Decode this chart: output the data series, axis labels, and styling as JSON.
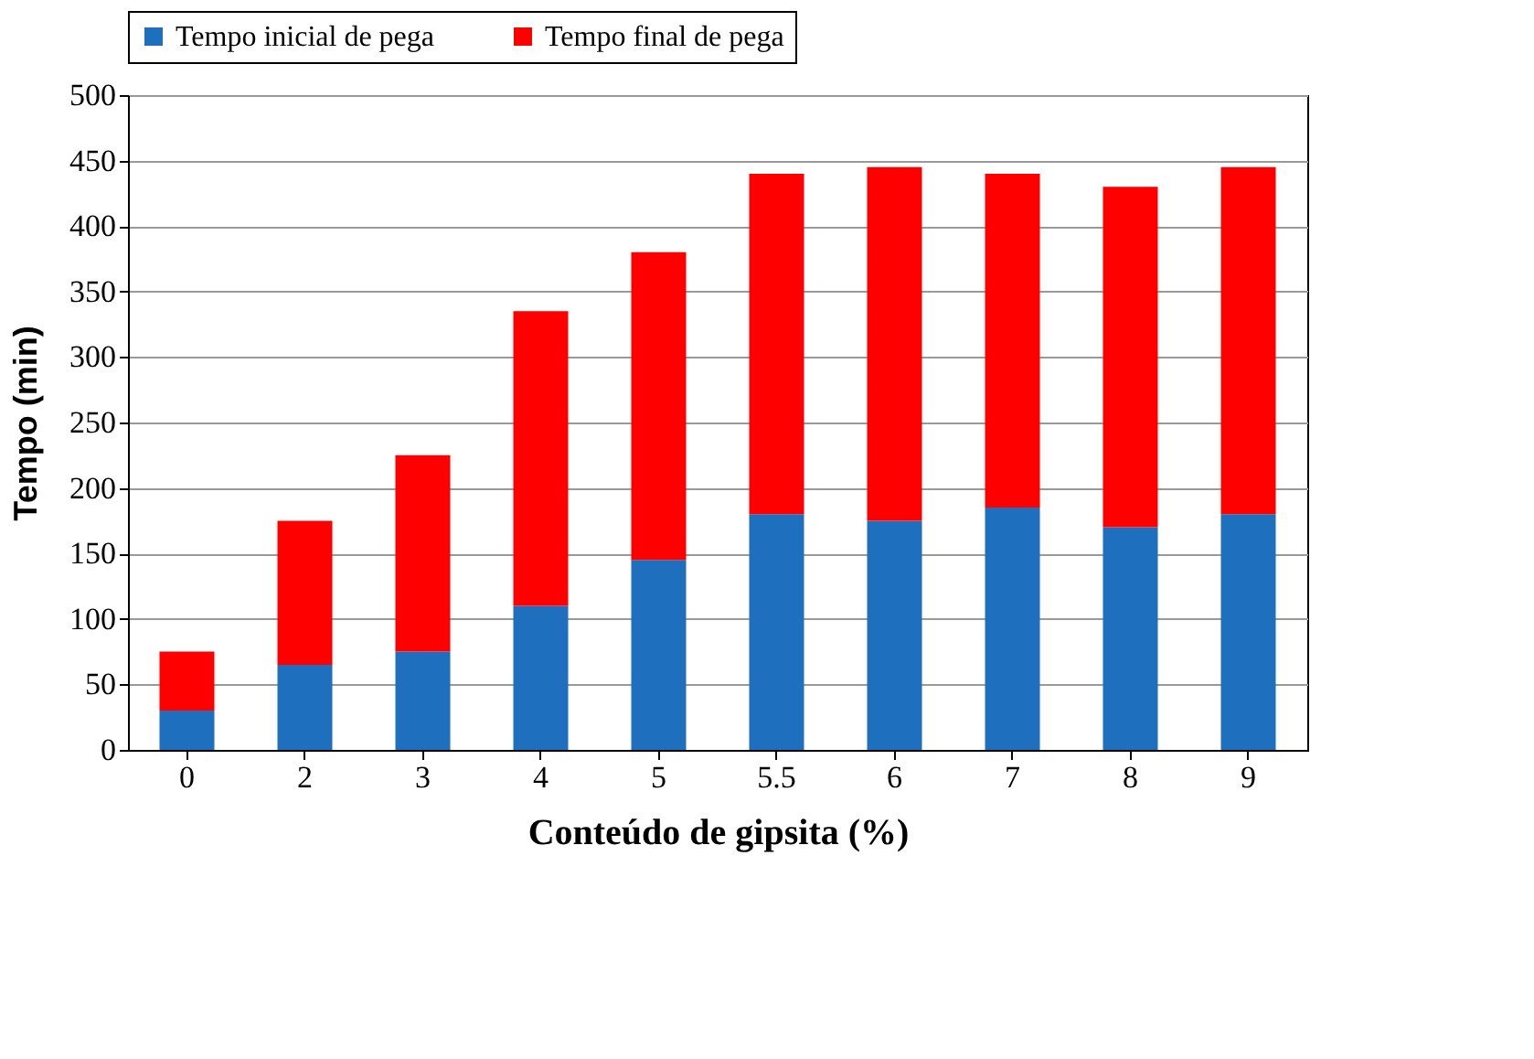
{
  "chart_data": {
    "type": "bar",
    "stacked": true,
    "xlabel": "Conteúdo de gipsita (%)",
    "ylabel": "Tempo (min)",
    "categories": [
      "0",
      "2",
      "3",
      "4",
      "5",
      "5.5",
      "6",
      "7",
      "8",
      "9"
    ],
    "series": [
      {
        "name": "Tempo inicial de pega",
        "color": "#1f6fbf",
        "values": [
          30,
          65,
          75,
          110,
          145,
          180,
          175,
          185,
          170,
          180
        ]
      },
      {
        "name": "Tempo final de pega",
        "color": "#ff0000",
        "values": [
          45,
          110,
          150,
          225,
          235,
          260,
          270,
          255,
          260,
          265
        ]
      }
    ],
    "ylim": [
      0,
      500
    ],
    "yticks": [
      0,
      50,
      100,
      150,
      200,
      250,
      300,
      350,
      400,
      450,
      500
    ],
    "grid": "y",
    "legend": "top"
  }
}
